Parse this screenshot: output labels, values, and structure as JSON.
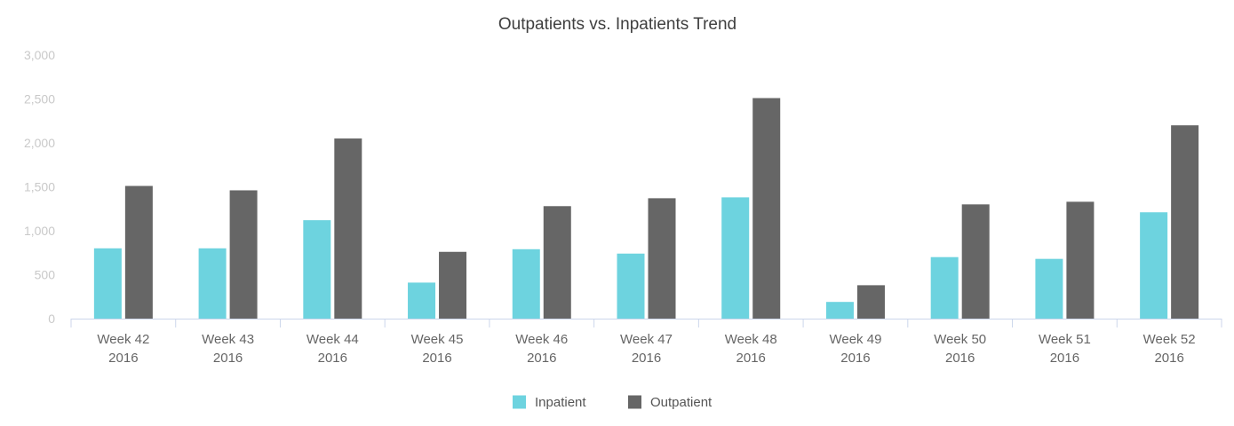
{
  "chart_data": {
    "type": "bar",
    "title": "Outpatients vs. Inpatients Trend",
    "xlabel": "",
    "ylabel": "",
    "ylim": [
      0,
      3000
    ],
    "yticks": [
      "0",
      "500",
      "1,000",
      "1,500",
      "2,000",
      "2,500",
      "3,000"
    ],
    "ytick_values": [
      0,
      500,
      1000,
      1500,
      2000,
      2500,
      3000
    ],
    "categories": [
      [
        "Week 42",
        "2016"
      ],
      [
        "Week 43",
        "2016"
      ],
      [
        "Week 44",
        "2016"
      ],
      [
        "Week 45",
        "2016"
      ],
      [
        "Week 46",
        "2016"
      ],
      [
        "Week 47",
        "2016"
      ],
      [
        "Week 48",
        "2016"
      ],
      [
        "Week 49",
        "2016"
      ],
      [
        "Week 50",
        "2016"
      ],
      [
        "Week 51",
        "2016"
      ],
      [
        "Week 52",
        "2016"
      ]
    ],
    "series": [
      {
        "name": "Inpatient",
        "color": "#6dd3df",
        "values": [
          800,
          800,
          1120,
          410,
          790,
          740,
          1380,
          190,
          700,
          680,
          1210
        ]
      },
      {
        "name": "Outpatient",
        "color": "#666666",
        "values": [
          1510,
          1460,
          2050,
          760,
          1280,
          1370,
          2510,
          380,
          1300,
          1330,
          2200
        ]
      }
    ],
    "grid": false,
    "legend_position": "bottom-center"
  }
}
